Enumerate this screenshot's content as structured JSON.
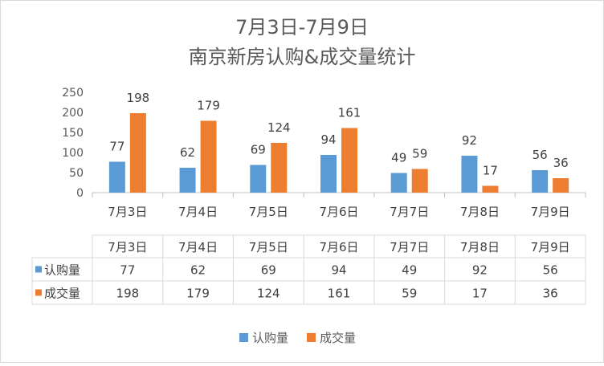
{
  "chart_data": {
    "type": "bar",
    "title_line1": "7月3日-7月9日",
    "title_line2": "南京新房认购&成交量统计",
    "categories": [
      "7月3日",
      "7月4日",
      "7月5日",
      "7月6日",
      "7月7日",
      "7月8日",
      "7月9日"
    ],
    "series": [
      {
        "name": "认购量",
        "color": "#5B9BD5",
        "values": [
          77,
          62,
          69,
          94,
          49,
          92,
          56
        ]
      },
      {
        "name": "成交量",
        "color": "#ED7D31",
        "values": [
          198,
          179,
          124,
          161,
          59,
          17,
          36
        ]
      }
    ],
    "y_ticks": [
      "0",
      "50",
      "100",
      "150",
      "200",
      "250"
    ],
    "ylim": [
      0,
      250
    ],
    "data_labels": true,
    "data_table": true,
    "legend": "bottom",
    "grid": false
  }
}
